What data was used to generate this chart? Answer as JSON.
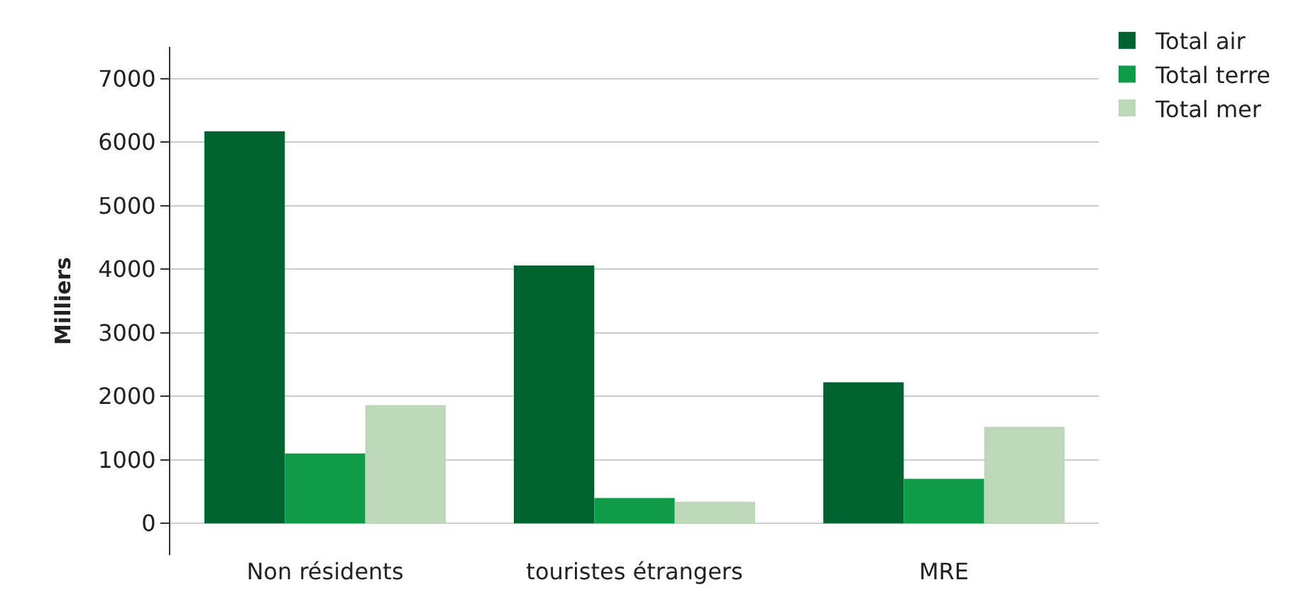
{
  "chart_data": {
    "type": "bar",
    "ylabel": "Milliers",
    "categories": [
      "Non résidents",
      "touristes étrangers",
      "MRE"
    ],
    "series": [
      {
        "name": "Total air",
        "color": "#00632f",
        "values": [
          6170,
          4060,
          2220
        ]
      },
      {
        "name": "Total terre",
        "color": "#0e9c48",
        "values": [
          1100,
          400,
          700
        ]
      },
      {
        "name": "Total mer",
        "color": "#bcd8b8",
        "values": [
          1860,
          340,
          1520
        ]
      }
    ],
    "ylim": [
      -500,
      7500
    ],
    "yticks": [
      0,
      1000,
      2000,
      3000,
      4000,
      5000,
      6000,
      7000
    ],
    "grid": "y",
    "legend": "top right"
  }
}
